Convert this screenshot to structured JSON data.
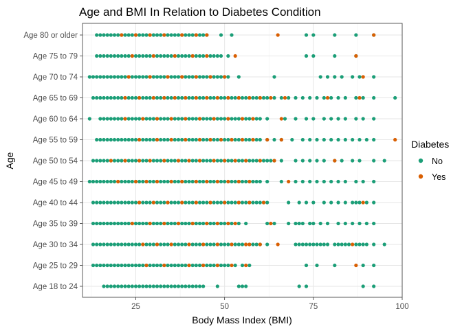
{
  "chart_data": {
    "type": "scatter",
    "title": "Age and BMI In Relation to Diabetes Condition",
    "xlabel": "Body Mass Index (BMI)",
    "ylabel": "Age",
    "xlim": [
      10,
      100
    ],
    "x_ticks": [
      25,
      50,
      75,
      100
    ],
    "categories": [
      "Age 18 to 24",
      "Age 25 to 29",
      "Age 30 to 34",
      "Age 35 to 39",
      "Age 40 to 44",
      "Age 45 to 49",
      "Age 50 to 54",
      "Age 55 to 59",
      "Age 60 to 64",
      "Age 65 to 69",
      "Age 70 to 74",
      "Age 75 to 79",
      "Age 80 or older"
    ],
    "grid": true,
    "legend": {
      "title": "Diabetes",
      "position": "right",
      "entries": [
        {
          "label": "No",
          "color": "#1b9e77"
        },
        {
          "label": "Yes",
          "color": "#d95f02"
        }
      ]
    },
    "series": [
      {
        "name": "No",
        "color": "#1b9e77",
        "points": [
          {
            "category": "Age 18 to 24",
            "x_range": [
              16,
              44
            ],
            "extra": [
              48,
              54,
              55,
              56,
              71,
              73,
              89,
              92
            ]
          },
          {
            "category": "Age 25 to 29",
            "x_range": [
              13,
              51
            ],
            "extra": [
              53,
              55,
              57,
              73,
              76,
              81,
              89,
              92
            ]
          },
          {
            "category": "Age 30 to 34",
            "x_range": [
              13,
              58
            ],
            "extra": [
              59,
              60,
              62,
              70,
              71,
              72,
              73,
              74,
              75,
              76,
              77,
              78,
              79,
              81,
              82,
              83,
              84,
              85,
              87,
              88,
              89,
              90,
              92,
              95
            ]
          },
          {
            "category": "Age 35 to 39",
            "x_range": [
              13,
              52
            ],
            "extra": [
              54,
              56,
              62,
              64,
              68,
              70,
              71,
              72,
              74,
              75,
              77,
              79,
              82,
              84,
              86,
              88,
              90,
              92
            ]
          },
          {
            "category": "Age 40 to 44",
            "x_range": [
              13,
              60
            ],
            "extra": [
              61,
              62,
              68,
              71,
              73,
              75,
              78,
              80,
              82,
              84,
              86,
              87,
              88,
              90,
              92
            ]
          },
          {
            "category": "Age 45 to 49",
            "x_range": [
              12,
              59
            ],
            "extra": [
              60,
              62,
              66,
              70,
              72,
              74,
              76,
              78,
              80,
              82,
              84,
              87,
              89,
              92
            ]
          },
          {
            "category": "Age 50 to 54",
            "x_range": [
              13,
              63
            ],
            "extra": [
              64,
              66,
              70,
              72,
              74,
              76,
              78,
              81,
              83,
              86,
              88,
              92,
              95
            ]
          },
          {
            "category": "Age 55 to 59",
            "x_range": [
              14,
              60
            ],
            "extra": [
              62,
              64,
              66,
              69,
              72,
              74,
              76,
              78,
              80,
              82,
              84,
              86,
              88,
              90,
              92
            ]
          },
          {
            "category": "Age 60 to 64",
            "x_range": [
              15,
              60
            ],
            "extra": [
              12,
              62,
              67,
              70,
              73,
              75,
              78,
              80,
              82,
              84,
              87,
              89,
              92
            ]
          },
          {
            "category": "Age 65 to 69",
            "x_range": [
              13,
              61
            ],
            "extra": [
              62,
              64,
              66,
              68,
              70,
              72,
              74,
              76,
              78,
              80,
              82,
              84,
              87,
              89,
              92,
              98
            ]
          },
          {
            "category": "Age 70 to 74",
            "x_range": [
              12,
              50
            ],
            "extra": [
              51,
              54,
              64,
              77,
              79,
              81,
              83,
              86,
              88,
              92
            ]
          },
          {
            "category": "Age 75 to 79",
            "x_range": [
              14,
              48
            ],
            "extra": [
              49,
              51,
              73,
              75,
              81,
              87
            ]
          },
          {
            "category": "Age 80 or older",
            "x_range": [
              14,
              45
            ],
            "extra": [
              49,
              52,
              73,
              75,
              81,
              87,
              92
            ]
          }
        ]
      },
      {
        "name": "Yes",
        "color": "#d95f02",
        "points": [
          {
            "category": "Age 18 to 24",
            "x": []
          },
          {
            "category": "Age 25 to 29",
            "x": [
              28,
              33,
              40,
              44,
              48,
              52,
              56,
              87
            ]
          },
          {
            "category": "Age 30 to 34",
            "x": [
              27,
              31,
              35,
              40,
              44,
              48,
              52,
              56,
              57,
              60,
              65,
              86
            ]
          },
          {
            "category": "Age 35 to 39",
            "x": [
              24,
              29,
              33,
              37,
              41,
              45,
              48,
              51,
              53,
              63
            ]
          },
          {
            "category": "Age 40 to 44",
            "x": [
              26,
              30,
              34,
              38,
              42,
              46,
              50,
              54,
              57,
              61,
              89
            ]
          },
          {
            "category": "Age 45 to 49",
            "x": [
              20,
              25,
              28,
              31,
              35,
              38,
              42,
              45,
              48,
              51,
              54,
              57,
              68
            ]
          },
          {
            "category": "Age 50 to 54",
            "x": [
              18,
              22,
              26,
              29,
              33,
              37,
              40,
              43,
              47,
              50,
              53,
              56,
              60,
              64,
              81
            ]
          },
          {
            "category": "Age 55 to 59",
            "x": [
              26,
              31,
              35,
              39,
              43,
              46,
              49,
              52,
              55,
              58,
              62,
              66,
              98
            ]
          },
          {
            "category": "Age 60 to 64",
            "x": [
              22,
              27,
              31,
              35,
              39,
              43,
              47,
              51,
              55,
              58,
              66
            ]
          },
          {
            "category": "Age 65 to 69",
            "x": [
              22,
              26,
              30,
              33,
              36,
              39,
              42,
              45,
              48,
              51,
              54,
              57,
              60,
              63,
              67,
              79,
              88
            ]
          },
          {
            "category": "Age 70 to 74",
            "x": [
              23,
              29,
              34,
              38,
              42,
              46,
              50,
              89
            ]
          },
          {
            "category": "Age 75 to 79",
            "x": [
              24,
              30,
              36,
              41,
              45,
              53,
              87
            ]
          },
          {
            "category": "Age 80 or older",
            "x": [
              21,
              25,
              29,
              33,
              38,
              42,
              45,
              65,
              92
            ]
          }
        ]
      }
    ]
  }
}
